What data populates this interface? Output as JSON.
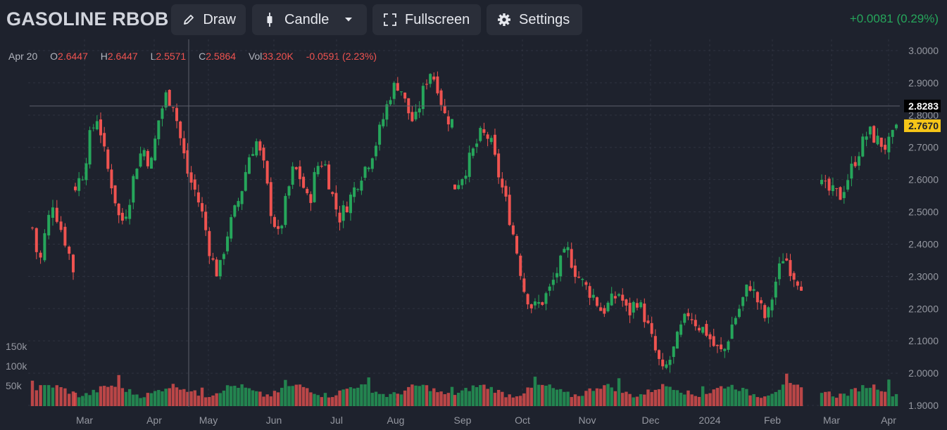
{
  "header": {
    "symbol": "GASOLINE RBOB",
    "draw_label": "Draw",
    "candle_label": "Candle",
    "fullscreen_label": "Fullscreen",
    "settings_label": "Settings",
    "change_text": "+0.0081 (0.29%)"
  },
  "ohlc": {
    "date": "Apr 20",
    "o_label": "O",
    "o_value": "2.6447",
    "h_label": "H",
    "h_value": "2.6447",
    "l_label": "L",
    "l_value": "2.5571",
    "c_label": "C",
    "c_value": "2.5864",
    "vol_label": "Vol",
    "vol_value": "33.20K",
    "change": "-0.0591 (2.23%)"
  },
  "colors": {
    "background": "#1e222d",
    "up": "#26a65b",
    "down": "#ef5350",
    "grid": "#2f3340",
    "axis_text": "#9598a1",
    "crosshair_price_bg": "#000000",
    "last_price_bg": "#f5c518"
  },
  "chart_data": {
    "type": "candlestick",
    "price_ticks": [
      "3.0000",
      "2.9000",
      "2.8000",
      "2.7000",
      "2.6000",
      "2.5000",
      "2.4000",
      "2.3000",
      "2.2000",
      "2.1000",
      "2.0000",
      "1.9000"
    ],
    "ylim": [
      1.9,
      3.0
    ],
    "x_ticks": [
      "Mar",
      "Apr",
      "May",
      "Jun",
      "Jul",
      "Aug",
      "Sep",
      "Oct",
      "Nov",
      "Dec",
      "2024",
      "Feb",
      "Mar",
      "Apr"
    ],
    "volume_ticks": [
      "150k",
      "100k",
      "50k"
    ],
    "volume_max": 170000,
    "crosshair_price": "2.8283",
    "last_price": "2.7670",
    "grid": true,
    "series": [
      {
        "seg": 0,
        "anchors": [
          2.45,
          2.33,
          2.45,
          2.53,
          2.46,
          2.4,
          2.32
        ]
      },
      {
        "seg": 1,
        "anchors": [
          2.58,
          2.62,
          2.74,
          2.8,
          2.66,
          2.57,
          2.46,
          2.52,
          2.64,
          2.7,
          2.64,
          2.78,
          2.86,
          2.84,
          2.72,
          2.61,
          2.56,
          2.48,
          2.36,
          2.3,
          2.42,
          2.49,
          2.56,
          2.67,
          2.72,
          2.64,
          2.5,
          2.42,
          2.54,
          2.64,
          2.6,
          2.52,
          2.64,
          2.66,
          2.56,
          2.48,
          2.52,
          2.57,
          2.62,
          2.66,
          2.72,
          2.8,
          2.88,
          2.9,
          2.82,
          2.77,
          2.86,
          2.94,
          2.9,
          2.8,
          2.78
        ]
      },
      {
        "seg": 2,
        "anchors": [
          2.58,
          2.62,
          2.68,
          2.74,
          2.73,
          2.62,
          2.52,
          2.4,
          2.26,
          2.2,
          2.22,
          2.26,
          2.33,
          2.38,
          2.31,
          2.27,
          2.24,
          2.19,
          2.22,
          2.25,
          2.18,
          2.23,
          2.17,
          2.08,
          2.0,
          2.05,
          2.13,
          2.19,
          2.15,
          2.13,
          2.08,
          2.06,
          2.15,
          2.21,
          2.28,
          2.22,
          2.16,
          2.28,
          2.37,
          2.31,
          2.28
        ]
      },
      {
        "seg": 3,
        "anchors": [
          2.58,
          2.56,
          2.55,
          2.62,
          2.69,
          2.75,
          2.72,
          2.7,
          2.75
        ]
      }
    ],
    "volume_seed": [
      0.55,
      0.75,
      0.9,
      0.65,
      0.8,
      0.6,
      0.85,
      0.7
    ]
  }
}
